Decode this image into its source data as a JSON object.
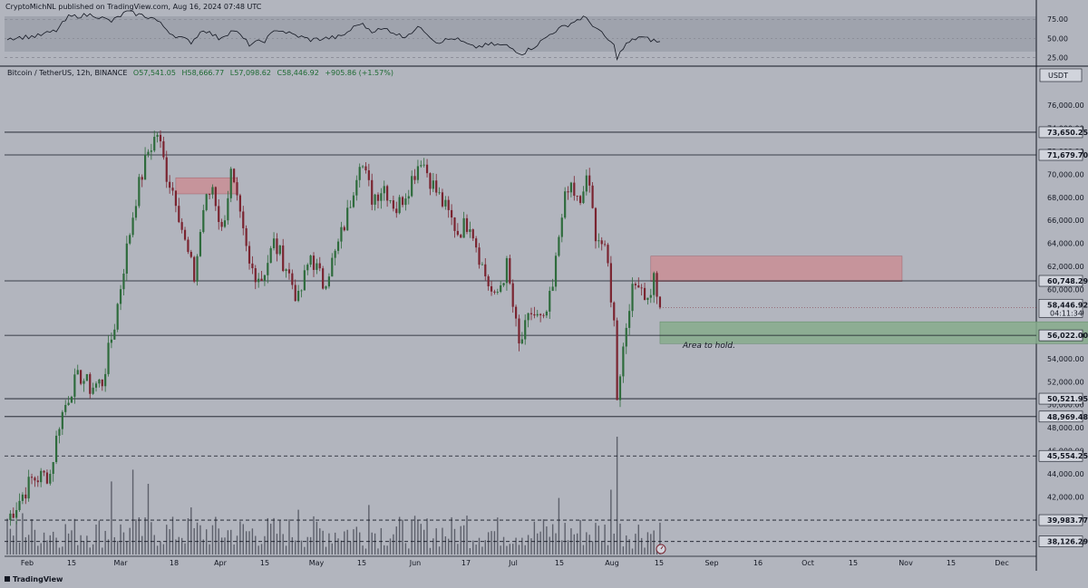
{
  "publisher": "CryptoMichNL published on TradingView.com, Aug 16, 2024 07:48 UTC",
  "symbol_line": {
    "symbol": "Bitcoin / TetherUS, 12h, BINANCE",
    "open": "O57,541.05",
    "high": "H58,666.77",
    "low": "L57,098.62",
    "close": "C58,446.92",
    "change": "+905.86 (+1.57%)"
  },
  "currency": "USDT",
  "brand": "TradingView",
  "annotation": "Area to hold.",
  "colors": {
    "up": "#2e6b3c",
    "down": "#7a2430",
    "zone_red": "#c98e95",
    "zone_green": "#86ab8c",
    "background": "#b2b5be",
    "panel": "#d1d4dc"
  },
  "chart_data": {
    "type": "candlestick",
    "timeframe": "12h",
    "x_ticks": [
      "Feb",
      "15",
      "Mar",
      "18",
      "Apr",
      "15",
      "May",
      "15",
      "Jun",
      "17",
      "Jul",
      "15",
      "Aug",
      "15",
      "Sep",
      "16",
      "Oct",
      "15",
      "Nov",
      "15",
      "Dec"
    ],
    "y_ticks": [
      76000,
      74000,
      72000,
      70000,
      68000,
      66000,
      64000,
      62000,
      60000,
      58000,
      56000,
      54000,
      52000,
      50000,
      48000,
      46000,
      44000,
      42000,
      40000,
      38000
    ],
    "y_tick_labels": [
      "76,000.00",
      "74,000.00",
      "72,000.00",
      "70,000.00",
      "68,000.00",
      "66,000.00",
      "64,000.00",
      "62,000.00",
      "60,000.00",
      "58,000.00",
      "56,000.00",
      "54,000.00",
      "52,000.00",
      "50,000.00",
      "48,000.00",
      "46,000.00",
      "44,000.00",
      "42,000.00",
      "40,000.00",
      "38,000.00"
    ],
    "ylim": [
      37000,
      77500
    ],
    "path": [
      [
        0,
        40000
      ],
      [
        8,
        43500
      ],
      [
        14,
        44000
      ],
      [
        17,
        48500
      ],
      [
        21,
        51500
      ],
      [
        24,
        52500
      ],
      [
        27,
        51500
      ],
      [
        31,
        52000
      ],
      [
        35,
        57000
      ],
      [
        38,
        62000
      ],
      [
        42,
        68000
      ],
      [
        46,
        72000
      ],
      [
        49,
        73600
      ],
      [
        52,
        70000
      ],
      [
        55,
        68000
      ],
      [
        58,
        64000
      ],
      [
        61,
        61000
      ],
      [
        64,
        67000
      ],
      [
        67,
        69000
      ],
      [
        70,
        65000
      ],
      [
        73,
        70000
      ],
      [
        76,
        66000
      ],
      [
        79,
        62000
      ],
      [
        83,
        61000
      ],
      [
        87,
        64000
      ],
      [
        91,
        62000
      ],
      [
        95,
        59000
      ],
      [
        99,
        63000
      ],
      [
        103,
        60500
      ],
      [
        107,
        63000
      ],
      [
        111,
        66500
      ],
      [
        115,
        71500
      ],
      [
        119,
        68000
      ],
      [
        123,
        69000
      ],
      [
        127,
        67000
      ],
      [
        131,
        69000
      ],
      [
        135,
        71500
      ],
      [
        139,
        69000
      ],
      [
        143,
        67000
      ],
      [
        147,
        65000
      ],
      [
        151,
        66000
      ],
      [
        155,
        62000
      ],
      [
        159,
        59000
      ],
      [
        163,
        62000
      ],
      [
        167,
        55000
      ],
      [
        171,
        58000
      ],
      [
        175,
        57000
      ],
      [
        178,
        60000
      ],
      [
        181,
        67000
      ],
      [
        184,
        69000
      ],
      [
        187,
        67000
      ],
      [
        189,
        70000
      ],
      [
        192,
        65000
      ],
      [
        194,
        64000
      ],
      [
        196,
        62000
      ],
      [
        198,
        57000
      ],
      [
        199,
        51000
      ],
      [
        201,
        55000
      ],
      [
        203,
        59000
      ],
      [
        206,
        61000
      ],
      [
        209,
        59000
      ],
      [
        211,
        61000
      ],
      [
        213,
        58446.92
      ]
    ],
    "levels": [
      {
        "price": 73650.25,
        "label": "73,650.25",
        "style": "solid"
      },
      {
        "price": 71679.7,
        "label": "71,679.70",
        "style": "solid"
      },
      {
        "price": 60748.29,
        "label": "60,748.29",
        "style": "solid"
      },
      {
        "price": 56022.0,
        "label": "56,022.00",
        "style": "solid"
      },
      {
        "price": 50521.95,
        "label": "50,521.95",
        "style": "solid"
      },
      {
        "price": 48969.48,
        "label": "48,969.48",
        "style": "solid"
      },
      {
        "price": 45554.25,
        "label": "45,554.25",
        "style": "dashed"
      },
      {
        "price": 39983.77,
        "label": "39,983.77",
        "style": "dashed"
      },
      {
        "price": 38126.29,
        "label": "38,126.29",
        "style": "dashed"
      }
    ],
    "last_price": {
      "label": "58,446.92",
      "countdown": "04:11:34"
    },
    "zones": [
      {
        "name": "resistance",
        "from_index": 210,
        "to_index": 292,
        "low": 60700,
        "high": 62900
      },
      {
        "name": "support",
        "from_index": 213,
        "to_index": 360,
        "low": 55300,
        "high": 57200
      },
      {
        "name": "resistance-early",
        "from_index": 55,
        "to_index": 75,
        "low": 68300,
        "high": 69700
      }
    ],
    "rsi": {
      "y_ticks": [
        75,
        50,
        25
      ],
      "y_tick_labels": [
        "75.00",
        "50.00",
        "25.00"
      ],
      "ylim": [
        17,
        86
      ],
      "path": [
        [
          0,
          50
        ],
        [
          10,
          53
        ],
        [
          16,
          60
        ],
        [
          20,
          78
        ],
        [
          28,
          81
        ],
        [
          34,
          72
        ],
        [
          39,
          85
        ],
        [
          44,
          80
        ],
        [
          48,
          76
        ],
        [
          54,
          55
        ],
        [
          60,
          45
        ],
        [
          64,
          62
        ],
        [
          69,
          50
        ],
        [
          74,
          61
        ],
        [
          79,
          42
        ],
        [
          84,
          47
        ],
        [
          88,
          62
        ],
        [
          93,
          55
        ],
        [
          99,
          48
        ],
        [
          104,
          50
        ],
        [
          109,
          52
        ],
        [
          115,
          70
        ],
        [
          119,
          60
        ],
        [
          124,
          62
        ],
        [
          129,
          52
        ],
        [
          135,
          65
        ],
        [
          140,
          45
        ],
        [
          146,
          50
        ],
        [
          152,
          38
        ],
        [
          158,
          42
        ],
        [
          163,
          40
        ],
        [
          168,
          30
        ],
        [
          173,
          42
        ],
        [
          178,
          58
        ],
        [
          184,
          70
        ],
        [
          188,
          78
        ],
        [
          191,
          68
        ],
        [
          195,
          52
        ],
        [
          198,
          40
        ],
        [
          199,
          25
        ],
        [
          202,
          42
        ],
        [
          206,
          52
        ],
        [
          210,
          48
        ],
        [
          213,
          45
        ]
      ]
    },
    "volume": {
      "spikes": [
        [
          199,
          1.0
        ],
        [
          197,
          0.55
        ],
        [
          34,
          0.62
        ],
        [
          41,
          0.72
        ],
        [
          46,
          0.6
        ],
        [
          118,
          0.42
        ],
        [
          180,
          0.48
        ],
        [
          5,
          0.35
        ],
        [
          60,
          0.4
        ],
        [
          95,
          0.38
        ],
        [
          150,
          0.33
        ]
      ]
    }
  }
}
